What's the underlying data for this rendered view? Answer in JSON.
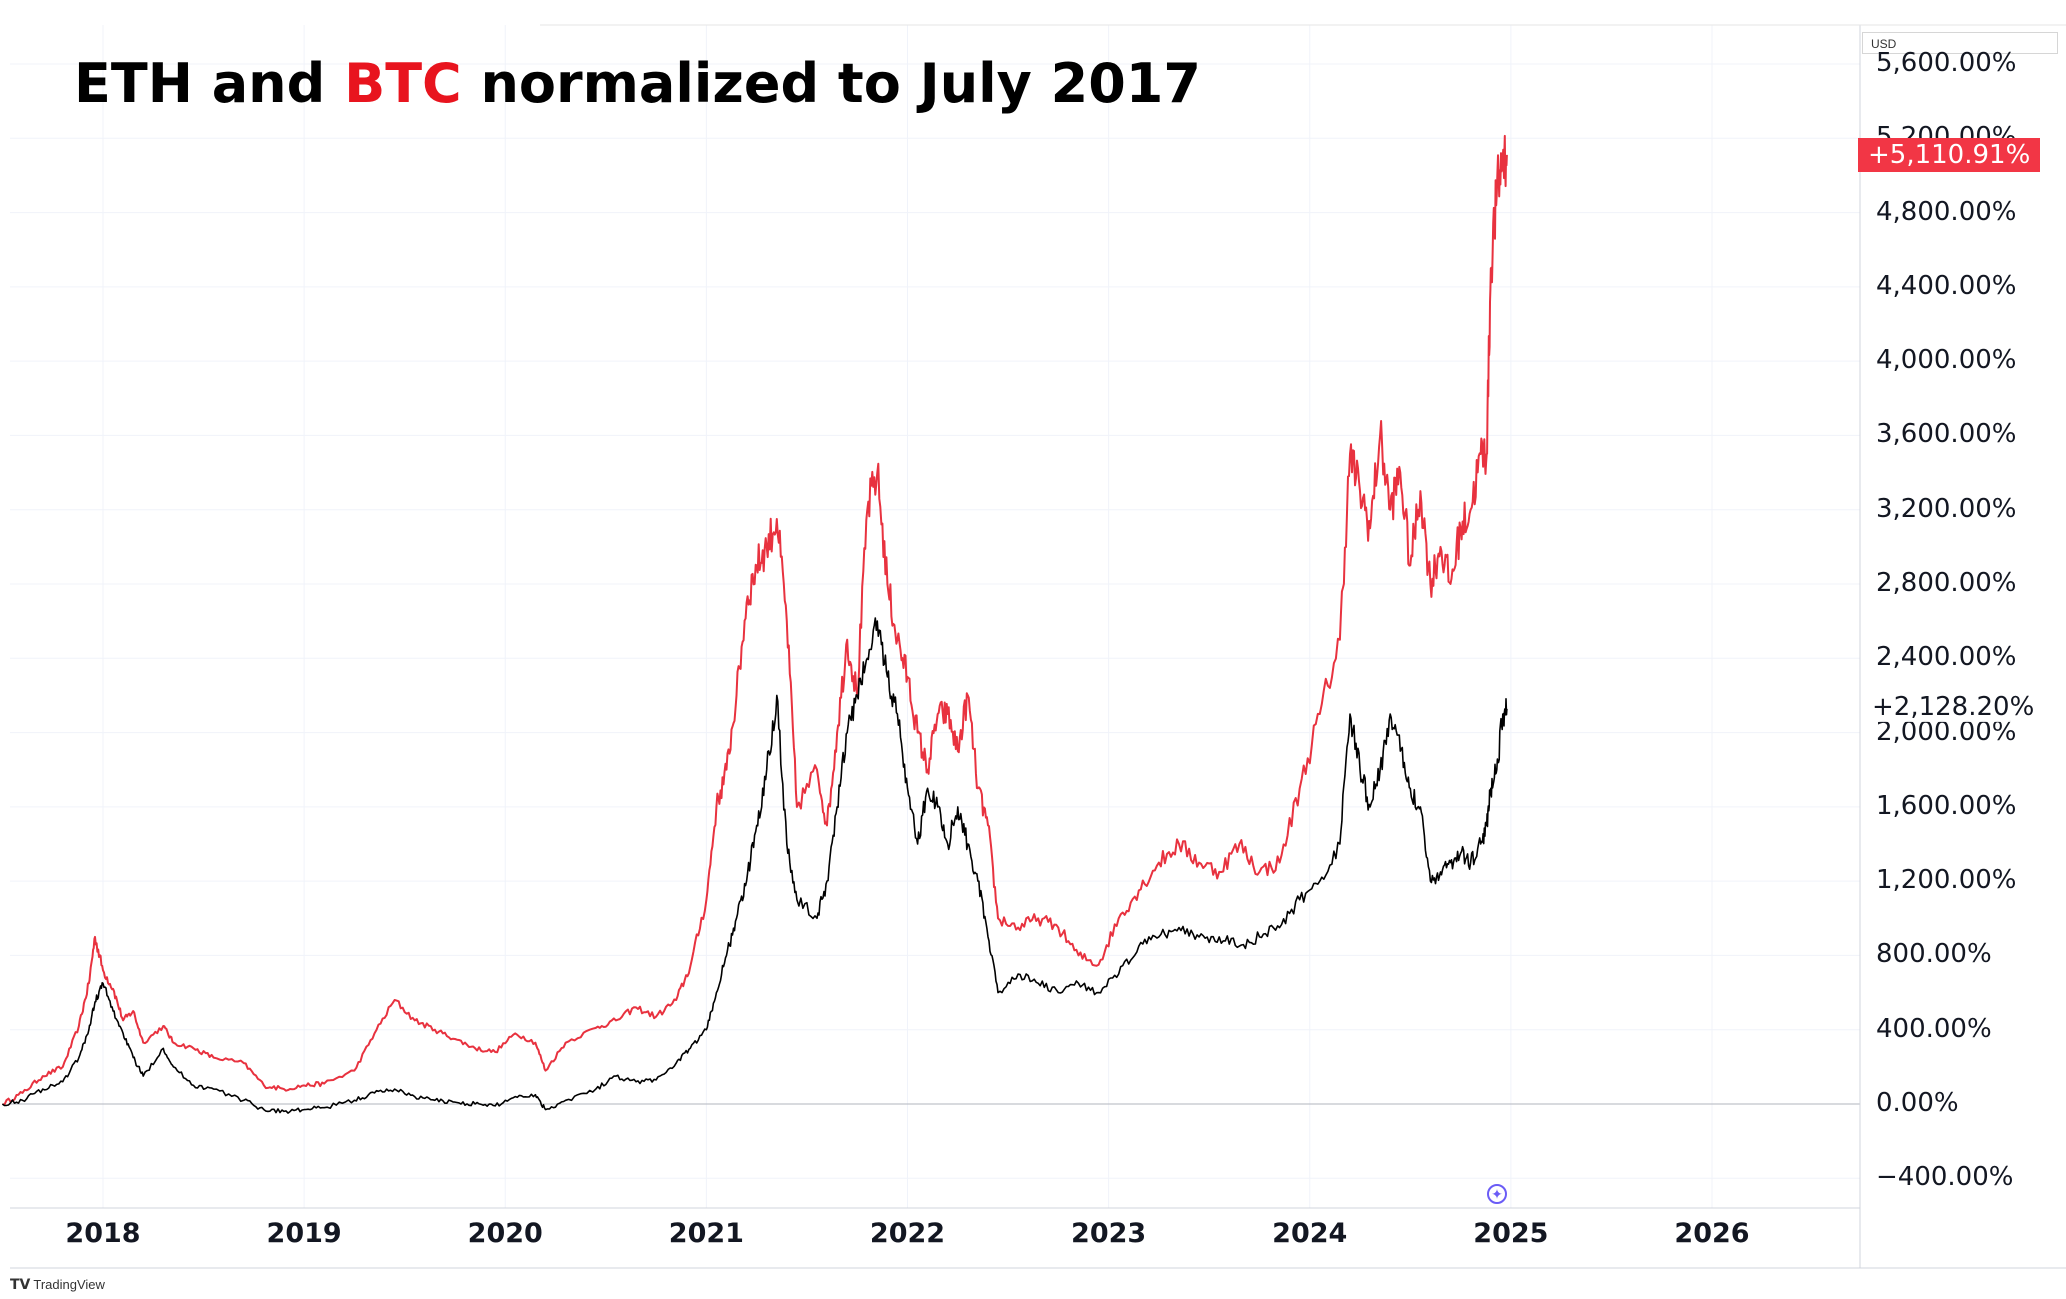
{
  "chart_data": {
    "type": "line",
    "title_parts": [
      {
        "text": "ETH and ",
        "color": "#000000"
      },
      {
        "text": "BTC",
        "color": "#e8141e"
      },
      {
        "text": " normalized to July 2017",
        "color": "#000000"
      }
    ],
    "currency": "USD",
    "ylim": [
      -550,
      5800
    ],
    "xlim": [
      2017.5,
      2026.7
    ],
    "grid": true,
    "y_ticks": [
      {
        "value": 5600,
        "label": "5,600.00%"
      },
      {
        "value": 5200,
        "label": "5,200.00%"
      },
      {
        "value": 4800,
        "label": "4,800.00%"
      },
      {
        "value": 4400,
        "label": "4,400.00%"
      },
      {
        "value": 4000,
        "label": "4,000.00%"
      },
      {
        "value": 3600,
        "label": "3,600.00%"
      },
      {
        "value": 3200,
        "label": "3,200.00%"
      },
      {
        "value": 2800,
        "label": "2,800.00%"
      },
      {
        "value": 2400,
        "label": "2,400.00%"
      },
      {
        "value": 2000,
        "label": "2,000.00%"
      },
      {
        "value": 1600,
        "label": "1,600.00%"
      },
      {
        "value": 1200,
        "label": "1,200.00%"
      },
      {
        "value": 800,
        "label": "800.00%"
      },
      {
        "value": 400,
        "label": "400.00%"
      },
      {
        "value": 0,
        "label": "0.00%"
      },
      {
        "value": -400,
        "label": "−400.00%"
      }
    ],
    "x_ticks": [
      {
        "value": 2018,
        "label": "2018"
      },
      {
        "value": 2019,
        "label": "2019"
      },
      {
        "value": 2020,
        "label": "2020"
      },
      {
        "value": 2021,
        "label": "2021"
      },
      {
        "value": 2022,
        "label": "2022"
      },
      {
        "value": 2023,
        "label": "2023"
      },
      {
        "value": 2024,
        "label": "2024"
      },
      {
        "value": 2025,
        "label": "2025"
      },
      {
        "value": 2026,
        "label": "2026"
      }
    ],
    "series": [
      {
        "color": "#e8323f",
        "last_label": "+5,110.91%",
        "points": [
          [
            2017.5,
            0
          ],
          [
            2017.6,
            60
          ],
          [
            2017.7,
            150
          ],
          [
            2017.8,
            200
          ],
          [
            2017.88,
            420
          ],
          [
            2017.93,
            650
          ],
          [
            2017.96,
            900
          ],
          [
            2018.0,
            720
          ],
          [
            2018.05,
            620
          ],
          [
            2018.1,
            450
          ],
          [
            2018.15,
            500
          ],
          [
            2018.2,
            330
          ],
          [
            2018.3,
            420
          ],
          [
            2018.35,
            330
          ],
          [
            2018.45,
            300
          ],
          [
            2018.55,
            250
          ],
          [
            2018.7,
            220
          ],
          [
            2018.8,
            100
          ],
          [
            2018.9,
            80
          ],
          [
            2019.0,
            100
          ],
          [
            2019.1,
            110
          ],
          [
            2019.25,
            180
          ],
          [
            2019.35,
            380
          ],
          [
            2019.45,
            560
          ],
          [
            2019.55,
            450
          ],
          [
            2019.65,
            400
          ],
          [
            2019.75,
            350
          ],
          [
            2019.85,
            300
          ],
          [
            2019.95,
            280
          ],
          [
            2020.05,
            380
          ],
          [
            2020.15,
            330
          ],
          [
            2020.2,
            180
          ],
          [
            2020.3,
            330
          ],
          [
            2020.45,
            410
          ],
          [
            2020.55,
            450
          ],
          [
            2020.65,
            520
          ],
          [
            2020.75,
            470
          ],
          [
            2020.85,
            560
          ],
          [
            2020.92,
            740
          ],
          [
            2021.0,
            1100
          ],
          [
            2021.05,
            1600
          ],
          [
            2021.1,
            1800
          ],
          [
            2021.15,
            2200
          ],
          [
            2021.2,
            2700
          ],
          [
            2021.25,
            2900
          ],
          [
            2021.3,
            3000
          ],
          [
            2021.35,
            3150
          ],
          [
            2021.4,
            2600
          ],
          [
            2021.45,
            1600
          ],
          [
            2021.55,
            1800
          ],
          [
            2021.6,
            1500
          ],
          [
            2021.65,
            2000
          ],
          [
            2021.7,
            2500
          ],
          [
            2021.75,
            2200
          ],
          [
            2021.8,
            3200
          ],
          [
            2021.85,
            3400
          ],
          [
            2021.9,
            2800
          ],
          [
            2021.95,
            2500
          ],
          [
            2022.0,
            2300
          ],
          [
            2022.05,
            2000
          ],
          [
            2022.1,
            1800
          ],
          [
            2022.15,
            2100
          ],
          [
            2022.2,
            2100
          ],
          [
            2022.25,
            1900
          ],
          [
            2022.3,
            2200
          ],
          [
            2022.35,
            1700
          ],
          [
            2022.4,
            1500
          ],
          [
            2022.45,
            1000
          ],
          [
            2022.55,
            950
          ],
          [
            2022.65,
            1000
          ],
          [
            2022.75,
            950
          ],
          [
            2022.85,
            800
          ],
          [
            2022.95,
            750
          ],
          [
            2023.05,
            1000
          ],
          [
            2023.15,
            1150
          ],
          [
            2023.25,
            1300
          ],
          [
            2023.35,
            1400
          ],
          [
            2023.45,
            1300
          ],
          [
            2023.55,
            1250
          ],
          [
            2023.65,
            1400
          ],
          [
            2023.75,
            1250
          ],
          [
            2023.85,
            1300
          ],
          [
            2023.95,
            1700
          ],
          [
            2024.05,
            2100
          ],
          [
            2024.15,
            2500
          ],
          [
            2024.2,
            3500
          ],
          [
            2024.25,
            3300
          ],
          [
            2024.3,
            3100
          ],
          [
            2024.35,
            3600
          ],
          [
            2024.4,
            3200
          ],
          [
            2024.45,
            3400
          ],
          [
            2024.5,
            2900
          ],
          [
            2024.55,
            3300
          ],
          [
            2024.6,
            2800
          ],
          [
            2024.65,
            3000
          ],
          [
            2024.7,
            2800
          ],
          [
            2024.75,
            3100
          ],
          [
            2024.8,
            3200
          ],
          [
            2024.85,
            3500
          ],
          [
            2024.88,
            3500
          ],
          [
            2024.9,
            4500
          ],
          [
            2024.93,
            4900
          ],
          [
            2024.96,
            5100
          ],
          [
            2024.98,
            5111
          ]
        ]
      },
      {
        "color": "#000000",
        "last_label": "+2,128.20%",
        "points": [
          [
            2017.5,
            0
          ],
          [
            2017.6,
            20
          ],
          [
            2017.7,
            80
          ],
          [
            2017.8,
            120
          ],
          [
            2017.88,
            250
          ],
          [
            2017.93,
            400
          ],
          [
            2017.96,
            550
          ],
          [
            2018.0,
            650
          ],
          [
            2018.05,
            500
          ],
          [
            2018.1,
            380
          ],
          [
            2018.15,
            250
          ],
          [
            2018.2,
            150
          ],
          [
            2018.3,
            300
          ],
          [
            2018.35,
            200
          ],
          [
            2018.45,
            100
          ],
          [
            2018.55,
            80
          ],
          [
            2018.7,
            20
          ],
          [
            2018.8,
            -30
          ],
          [
            2018.9,
            -40
          ],
          [
            2019.0,
            -30
          ],
          [
            2019.1,
            -20
          ],
          [
            2019.25,
            20
          ],
          [
            2019.35,
            60
          ],
          [
            2019.45,
            80
          ],
          [
            2019.55,
            40
          ],
          [
            2019.65,
            20
          ],
          [
            2019.75,
            10
          ],
          [
            2019.85,
            0
          ],
          [
            2019.95,
            -10
          ],
          [
            2020.05,
            40
          ],
          [
            2020.15,
            50
          ],
          [
            2020.2,
            -30
          ],
          [
            2020.3,
            20
          ],
          [
            2020.45,
            80
          ],
          [
            2020.55,
            150
          ],
          [
            2020.65,
            120
          ],
          [
            2020.75,
            130
          ],
          [
            2020.85,
            220
          ],
          [
            2020.92,
            300
          ],
          [
            2021.0,
            400
          ],
          [
            2021.05,
            600
          ],
          [
            2021.1,
            800
          ],
          [
            2021.15,
            1000
          ],
          [
            2021.2,
            1200
          ],
          [
            2021.25,
            1500
          ],
          [
            2021.3,
            1800
          ],
          [
            2021.35,
            2200
          ],
          [
            2021.4,
            1400
          ],
          [
            2021.45,
            1100
          ],
          [
            2021.55,
            1000
          ],
          [
            2021.6,
            1200
          ],
          [
            2021.65,
            1600
          ],
          [
            2021.7,
            2000
          ],
          [
            2021.75,
            2200
          ],
          [
            2021.8,
            2400
          ],
          [
            2021.85,
            2600
          ],
          [
            2021.9,
            2300
          ],
          [
            2021.95,
            2100
          ],
          [
            2022.0,
            1700
          ],
          [
            2022.05,
            1400
          ],
          [
            2022.1,
            1700
          ],
          [
            2022.15,
            1600
          ],
          [
            2022.2,
            1400
          ],
          [
            2022.25,
            1600
          ],
          [
            2022.3,
            1400
          ],
          [
            2022.35,
            1200
          ],
          [
            2022.4,
            900
          ],
          [
            2022.45,
            600
          ],
          [
            2022.55,
            700
          ],
          [
            2022.65,
            650
          ],
          [
            2022.75,
            600
          ],
          [
            2022.85,
            650
          ],
          [
            2022.95,
            600
          ],
          [
            2023.05,
            700
          ],
          [
            2023.15,
            850
          ],
          [
            2023.25,
            900
          ],
          [
            2023.35,
            950
          ],
          [
            2023.45,
            900
          ],
          [
            2023.55,
            900
          ],
          [
            2023.65,
            850
          ],
          [
            2023.75,
            900
          ],
          [
            2023.85,
            950
          ],
          [
            2023.95,
            1100
          ],
          [
            2024.05,
            1200
          ],
          [
            2024.15,
            1400
          ],
          [
            2024.2,
            2100
          ],
          [
            2024.25,
            1800
          ],
          [
            2024.3,
            1600
          ],
          [
            2024.35,
            1800
          ],
          [
            2024.4,
            2100
          ],
          [
            2024.45,
            1900
          ],
          [
            2024.5,
            1700
          ],
          [
            2024.55,
            1600
          ],
          [
            2024.6,
            1200
          ],
          [
            2024.65,
            1250
          ],
          [
            2024.7,
            1300
          ],
          [
            2024.75,
            1350
          ],
          [
            2024.8,
            1300
          ],
          [
            2024.85,
            1400
          ],
          [
            2024.88,
            1500
          ],
          [
            2024.9,
            1700
          ],
          [
            2024.93,
            1800
          ],
          [
            2024.96,
            2100
          ],
          [
            2024.98,
            2128
          ]
        ]
      }
    ]
  },
  "watermark": "TradingView"
}
